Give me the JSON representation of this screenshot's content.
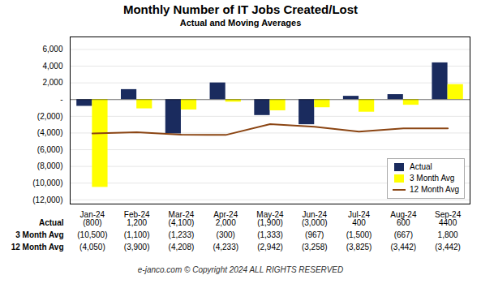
{
  "chart_data": {
    "type": "bar",
    "title": "Monthly Number of IT Jobs Created/Lost",
    "subtitle": "Actual and Moving Averages",
    "categories": [
      "Jan-24",
      "Feb-24",
      "Mar-24",
      "Apr-24",
      "May-24",
      "Jun-24",
      "Jul-24",
      "Aug-24",
      "Sep-24"
    ],
    "series": [
      {
        "name": "Actual",
        "color": "#1a2b5e",
        "values": [
          -800,
          1200,
          -4100,
          2000,
          -1900,
          -3000,
          400,
          600,
          4400
        ],
        "value_labels": [
          "(800)",
          "1,200",
          "(4,100)",
          "2,000",
          "(1,900)",
          "(3,000)",
          "400",
          "600",
          "4400"
        ]
      },
      {
        "name": "3 Month Avg",
        "color": "#ffff00",
        "values": [
          -10500,
          -1100,
          -1233,
          -300,
          -1333,
          -967,
          -1500,
          -667,
          1800
        ],
        "value_labels": [
          "(10,500)",
          "(1,100)",
          "(1,233)",
          "(300)",
          "(1,333)",
          "(967)",
          "(1,500)",
          "(667)",
          "1,800"
        ]
      },
      {
        "name": "12 Month Avg",
        "type": "line",
        "color": "#8B4513",
        "values": [
          -4050,
          -3900,
          -4208,
          -4233,
          -2942,
          -3258,
          -3825,
          -3442,
          -3442
        ],
        "value_labels": [
          "(4,050)",
          "(3,900)",
          "(4,208)",
          "(4,233)",
          "(2,942)",
          "(3,258)",
          "(3,825)",
          "(3,442)",
          "(3,442)"
        ]
      }
    ],
    "ylim": [
      -12500,
      7500
    ],
    "yticks": [
      {
        "value": 6000,
        "label": "6,000"
      },
      {
        "value": 4000,
        "label": "4,000"
      },
      {
        "value": 2000,
        "label": "2,000"
      },
      {
        "value": 0,
        "label": "-"
      },
      {
        "value": -2000,
        "label": "(2,000)"
      },
      {
        "value": -4000,
        "label": "(4,000)"
      },
      {
        "value": -6000,
        "label": "(6,000)"
      },
      {
        "value": -8000,
        "label": "(8,000)"
      },
      {
        "value": -10000,
        "label": "(10,000)"
      },
      {
        "value": -12000,
        "label": "(12,000)"
      }
    ],
    "grid": true,
    "legend": "lower right",
    "footer": "e-janco.com © Copyright 2024 ALL RIGHTS RESERVED"
  }
}
